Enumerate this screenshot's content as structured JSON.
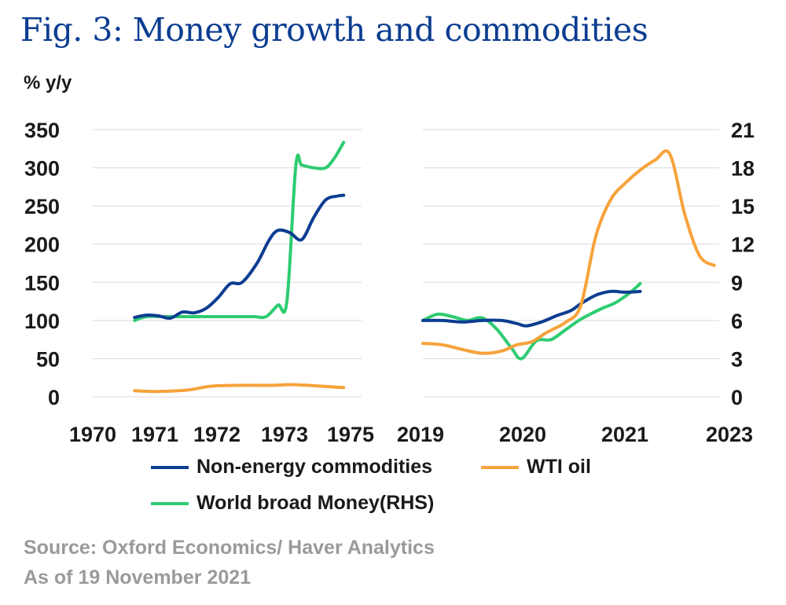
{
  "title": "Fig. 3: Money growth and commodities",
  "unit_label": "% y/y",
  "source": "Source: Oxford Economics/ Haver Analytics",
  "as_of": "As of 19 November 2021",
  "colors": {
    "non_energy": "#0b3d91",
    "wti": "#f7a23b",
    "money": "#2ecc71",
    "grid": "#d9d9d9"
  },
  "legend": [
    {
      "name": "Non-energy commodities",
      "color": "#0b3d91"
    },
    {
      "name": "WTI oil",
      "color": "#f7a23b"
    },
    {
      "name": "World broad Money(RHS)",
      "color": "#2ecc71"
    }
  ],
  "chart_data": [
    {
      "type": "line",
      "panel": "left",
      "x_ticks": [
        "1970",
        "1971",
        "1972",
        "1973",
        "1975"
      ],
      "xlim": [
        1970,
        1974.5
      ],
      "y_ticks": [
        "350",
        "300",
        "250",
        "200",
        "150",
        "100",
        "50",
        "0"
      ],
      "ylim": [
        0,
        350
      ],
      "y2lim": [
        0,
        21
      ],
      "series": [
        {
          "name": "Non-energy commodities",
          "axis": "left",
          "x": [
            1970.7,
            1970.9,
            1971.1,
            1971.3,
            1971.5,
            1971.7,
            1971.9,
            1972.1,
            1972.3,
            1972.5,
            1972.75,
            1972.95,
            1973.1,
            1973.3,
            1973.5,
            1973.7,
            1973.9,
            1974.1,
            1974.2
          ],
          "values": [
            104,
            107,
            106,
            103,
            111,
            110,
            116,
            130,
            148,
            150,
            175,
            205,
            218,
            215,
            206,
            235,
            258,
            263,
            264
          ]
        },
        {
          "name": "WTI oil",
          "axis": "left",
          "x": [
            1970.7,
            1971.0,
            1971.3,
            1971.6,
            1972.0,
            1972.5,
            1973.0,
            1973.3,
            1973.6,
            1974.0,
            1974.2
          ],
          "values": [
            8,
            7,
            7.5,
            9,
            14,
            15,
            15,
            16,
            15,
            13,
            12
          ]
        },
        {
          "name": "World broad Money(RHS)",
          "axis": "right",
          "x": [
            1970.7,
            1970.9,
            1971.2,
            1971.5,
            1971.8,
            1972.1,
            1972.4,
            1972.7,
            1972.9,
            1973.1,
            1973.25,
            1973.4,
            1973.5,
            1973.7,
            1973.9,
            1974.05,
            1974.2
          ],
          "values": [
            6.0,
            6.3,
            6.3,
            6.3,
            6.3,
            6.3,
            6.3,
            6.3,
            6.3,
            7.2,
            7.5,
            18.2,
            18.2,
            18.0,
            18.0,
            18.8,
            20.0
          ]
        }
      ]
    },
    {
      "type": "line",
      "panel": "right",
      "x_ticks": [
        "2019",
        "2020",
        "2021",
        "2023"
      ],
      "xlim": [
        2019,
        2022
      ],
      "y_ticks": [
        "21",
        "18",
        "15",
        "12",
        "9",
        "6",
        "3",
        "0"
      ],
      "ylim": [
        0,
        350
      ],
      "y2lim": [
        0,
        21
      ],
      "series": [
        {
          "name": "Non-energy commodities",
          "axis": "left",
          "x": [
            2019.0,
            2019.2,
            2019.4,
            2019.6,
            2019.8,
            2019.95,
            2020.05,
            2020.2,
            2020.35,
            2020.5,
            2020.6,
            2020.75,
            2020.9,
            2021.05,
            2021.2
          ],
          "values": [
            100,
            100,
            98,
            100,
            100,
            96,
            93,
            98,
            106,
            113,
            122,
            133,
            138,
            137,
            138
          ]
        },
        {
          "name": "WTI oil",
          "axis": "left",
          "x": [
            2019.0,
            2019.2,
            2019.4,
            2019.6,
            2019.8,
            2019.95,
            2020.1,
            2020.25,
            2020.45,
            2020.6,
            2020.75,
            2020.9,
            2021.05,
            2021.2,
            2021.35,
            2021.5,
            2021.65,
            2021.8,
            2021.95
          ],
          "values": [
            70,
            68,
            62,
            57,
            60,
            68,
            72,
            84,
            98,
            120,
            210,
            258,
            280,
            297,
            310,
            318,
            240,
            185,
            172
          ]
        },
        {
          "name": "World broad Money(RHS)",
          "axis": "right",
          "x": [
            2019.0,
            2019.15,
            2019.3,
            2019.45,
            2019.6,
            2019.75,
            2019.9,
            2020.0,
            2020.15,
            2020.3,
            2020.45,
            2020.6,
            2020.8,
            2020.95,
            2021.1,
            2021.2
          ],
          "values": [
            6.0,
            6.5,
            6.3,
            6.0,
            6.2,
            5.3,
            3.8,
            3.0,
            4.4,
            4.5,
            5.3,
            6.1,
            6.9,
            7.4,
            8.2,
            8.9
          ]
        }
      ]
    }
  ]
}
